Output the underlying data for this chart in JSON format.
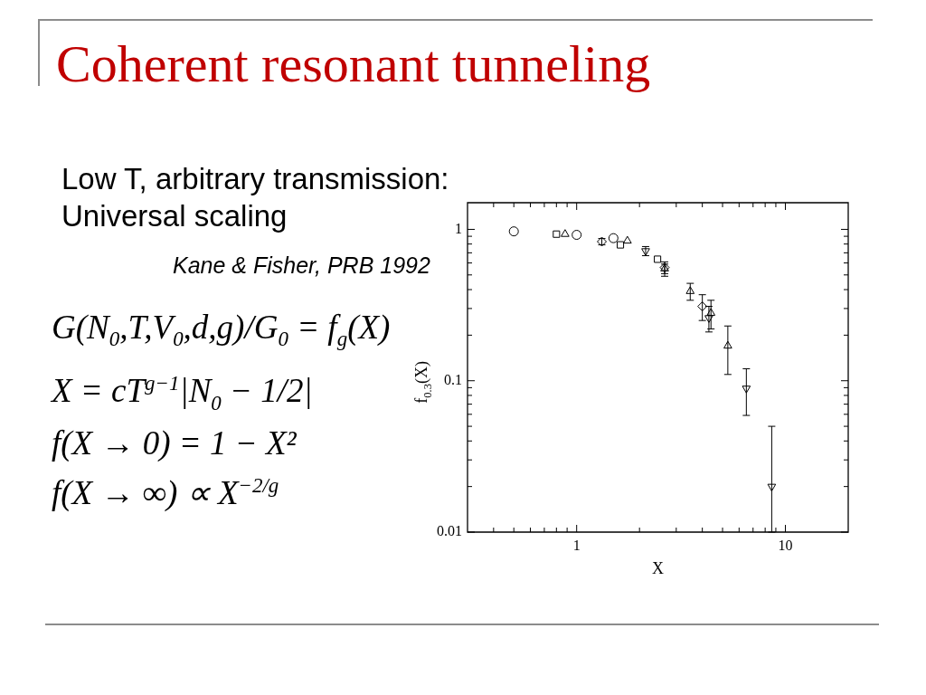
{
  "chart_data": {
    "type": "scatter",
    "title": "Coherent resonant tunneling",
    "subtitle": "Low T, arbitrary transmission: Universal scaling",
    "annotations": [
      "Kane & Fisher, PRB 1992",
      "G(N$_{0}$,T,V$_{0}$,d,g)/G$_{0}$ = f$_{g}$(X)",
      "X = cT$^{g−1}$|N$_{0}$ − 1/2|",
      "f(X → 0) = 1 − X²",
      "f(X → ∞) ∝ X$^{−2/g}$"
    ],
    "xlabel": "X",
    "ylabel": "f$_{0.3}$(X)",
    "log": "xy",
    "xlim": [
      0.3,
      20
    ],
    "ylim": [
      0.01,
      1.5
    ],
    "xticks": [
      {
        "value": 0.4,
        "label": null
      },
      {
        "value": 0.5,
        "label": null
      },
      {
        "value": 0.6,
        "label": null
      },
      {
        "value": 0.7,
        "label": null
      },
      {
        "value": 0.8,
        "label": null
      },
      {
        "value": 0.9,
        "label": null
      },
      1,
      {
        "value": 2,
        "label": null
      },
      {
        "value": 3,
        "label": null
      },
      {
        "value": 4,
        "label": null
      },
      {
        "value": 5,
        "label": null
      },
      {
        "value": 6,
        "label": null
      },
      {
        "value": 7,
        "label": null
      },
      {
        "value": 8,
        "label": null
      },
      {
        "value": 9,
        "label": null
      },
      10
    ],
    "yticks": [
      0.01,
      {
        "value": 0.02,
        "label": null
      },
      {
        "value": 0.03,
        "label": null
      },
      {
        "value": 0.04,
        "label": null
      },
      {
        "value": 0.05,
        "label": null
      },
      {
        "value": 0.06,
        "label": null
      },
      {
        "value": 0.07,
        "label": null
      },
      {
        "value": 0.08,
        "label": null
      },
      {
        "value": 0.09,
        "label": null
      },
      0.1,
      {
        "value": 0.2,
        "label": null
      },
      {
        "value": 0.3,
        "label": null
      },
      {
        "value": 0.4,
        "label": null
      },
      {
        "value": 0.5,
        "label": null
      },
      {
        "value": 0.6,
        "label": null
      },
      {
        "value": 0.7,
        "label": null
      },
      {
        "value": 0.8,
        "label": null
      },
      {
        "value": 0.9,
        "label": null
      },
      1
    ],
    "series": [
      {
        "color": "#000000",
        "marker": "circle",
        "x": [
          0.5,
          1.0,
          1.5
        ],
        "values": [
          0.97,
          0.92,
          0.875
        ]
      },
      {
        "color": "#000000",
        "marker": "square",
        "x": [
          0.8,
          1.62,
          2.44
        ],
        "values": [
          0.93,
          0.79,
          0.635
        ]
      },
      {
        "color": "#000000",
        "marker": "triangle",
        "x": [
          0.88,
          1.75,
          2.64,
          3.5,
          4.4,
          5.3
        ],
        "values": [
          0.93,
          0.84,
          0.55,
          0.39,
          0.28,
          0.17
        ],
        "errors": [
          null,
          null,
          [
            0.49,
            0.61
          ],
          [
            0.34,
            0.44
          ],
          [
            0.22,
            0.34
          ],
          [
            0.11,
            0.23
          ]
        ]
      },
      {
        "color": "#000000",
        "marker": "diamond",
        "x": [
          1.32,
          2.64,
          4.0
        ],
        "values": [
          0.83,
          0.56,
          0.31
        ],
        "errors": [
          [
            0.79,
            0.87
          ],
          [
            0.51,
            0.59
          ],
          [
            0.25,
            0.37
          ]
        ]
      },
      {
        "color": "#000000",
        "marker": "triangle-down",
        "x": [
          2.14,
          4.3,
          6.5,
          8.6
        ],
        "values": [
          0.72,
          0.26,
          0.089,
          0.02
        ],
        "errors": [
          [
            0.67,
            0.77
          ],
          [
            0.21,
            0.31
          ],
          [
            0.059,
            0.12
          ],
          [
            0.01,
            0.05
          ]
        ]
      }
    ]
  }
}
